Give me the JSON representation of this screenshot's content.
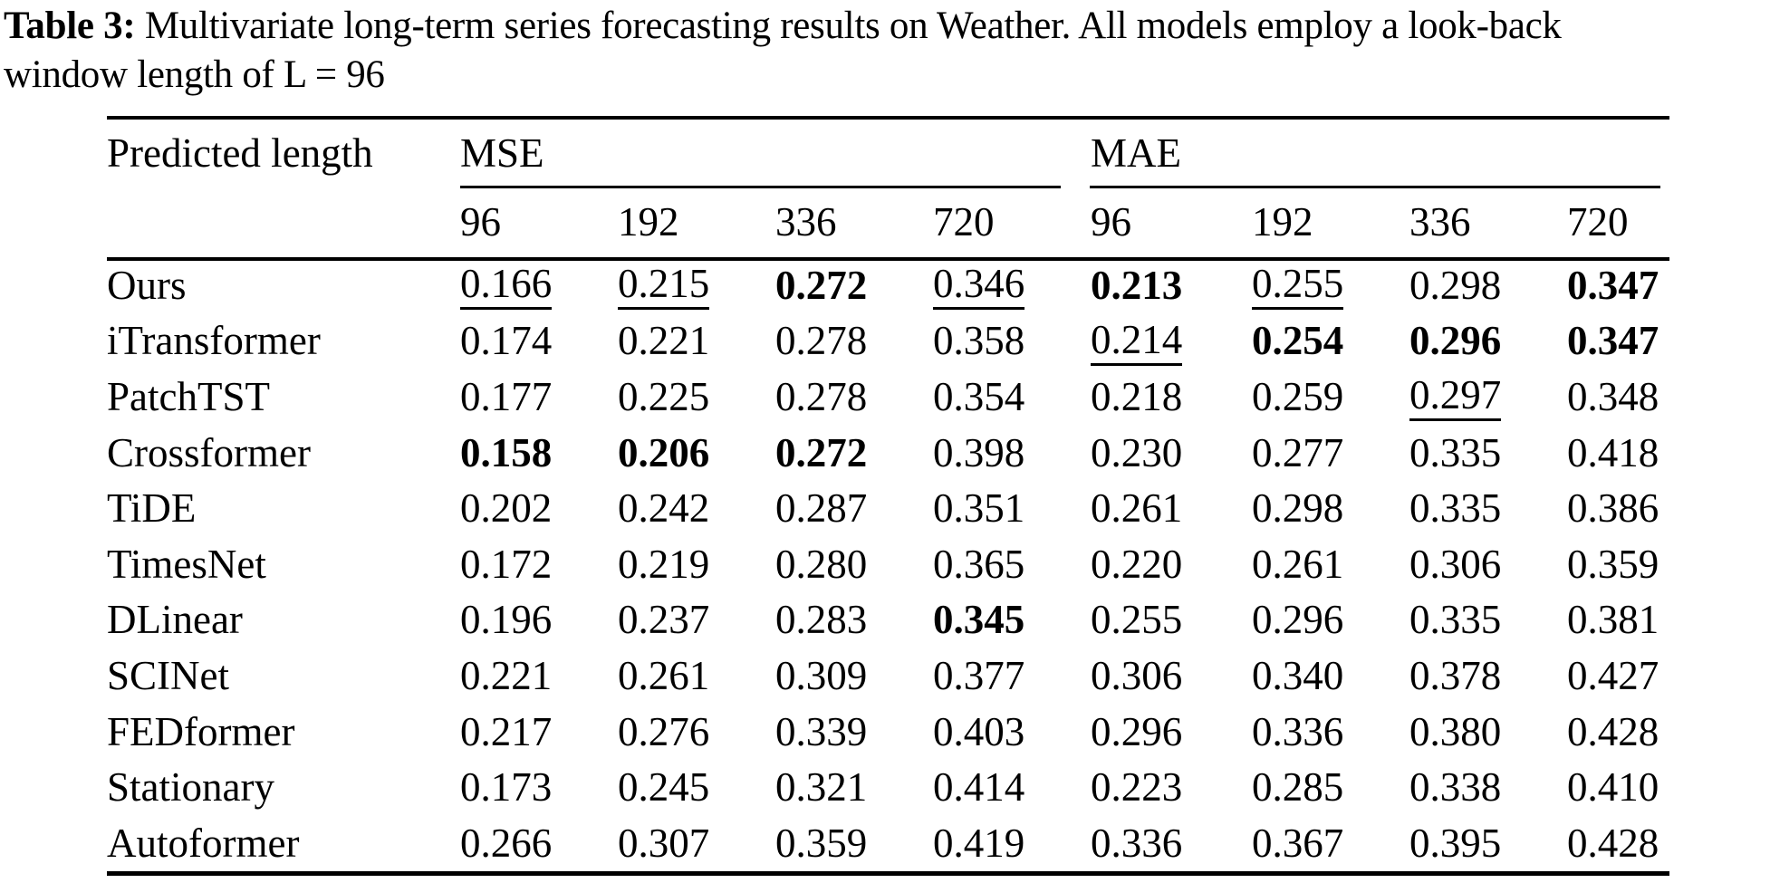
{
  "caption": {
    "label": "Table 3:",
    "line1": "Multivariate long-term series forecasting results on Weather. All models employ a look-back",
    "line2": "window length of L = 96"
  },
  "table": {
    "row_header": "Predicted length",
    "groups": [
      {
        "label": "MSE",
        "horizons": [
          "96",
          "192",
          "336",
          "720"
        ]
      },
      {
        "label": "MAE",
        "horizons": [
          "96",
          "192",
          "336",
          "720"
        ]
      }
    ],
    "rows": [
      {
        "model": "Ours",
        "cells": [
          {
            "v": "0.166",
            "f": "u"
          },
          {
            "v": "0.215",
            "f": "u"
          },
          {
            "v": "0.272",
            "f": "b"
          },
          {
            "v": "0.346",
            "f": "u"
          },
          {
            "v": "0.213",
            "f": "b"
          },
          {
            "v": "0.255",
            "f": "u"
          },
          {
            "v": "0.298",
            "f": "n"
          },
          {
            "v": "0.347",
            "f": "b"
          }
        ]
      },
      {
        "model": "iTransformer",
        "cells": [
          {
            "v": "0.174",
            "f": "n"
          },
          {
            "v": "0.221",
            "f": "n"
          },
          {
            "v": "0.278",
            "f": "n"
          },
          {
            "v": "0.358",
            "f": "n"
          },
          {
            "v": "0.214",
            "f": "u"
          },
          {
            "v": "0.254",
            "f": "b"
          },
          {
            "v": "0.296",
            "f": "b"
          },
          {
            "v": "0.347",
            "f": "b"
          }
        ]
      },
      {
        "model": "PatchTST",
        "cells": [
          {
            "v": "0.177",
            "f": "n"
          },
          {
            "v": "0.225",
            "f": "n"
          },
          {
            "v": "0.278",
            "f": "n"
          },
          {
            "v": "0.354",
            "f": "n"
          },
          {
            "v": "0.218",
            "f": "n"
          },
          {
            "v": "0.259",
            "f": "n"
          },
          {
            "v": "0.297",
            "f": "u"
          },
          {
            "v": "0.348",
            "f": "n"
          }
        ]
      },
      {
        "model": "Crossformer",
        "cells": [
          {
            "v": "0.158",
            "f": "b"
          },
          {
            "v": "0.206",
            "f": "b"
          },
          {
            "v": "0.272",
            "f": "b"
          },
          {
            "v": "0.398",
            "f": "n"
          },
          {
            "v": "0.230",
            "f": "n"
          },
          {
            "v": "0.277",
            "f": "n"
          },
          {
            "v": "0.335",
            "f": "n"
          },
          {
            "v": "0.418",
            "f": "n"
          }
        ]
      },
      {
        "model": "TiDE",
        "cells": [
          {
            "v": "0.202",
            "f": "n"
          },
          {
            "v": "0.242",
            "f": "n"
          },
          {
            "v": "0.287",
            "f": "n"
          },
          {
            "v": "0.351",
            "f": "n"
          },
          {
            "v": "0.261",
            "f": "n"
          },
          {
            "v": "0.298",
            "f": "n"
          },
          {
            "v": "0.335",
            "f": "n"
          },
          {
            "v": "0.386",
            "f": "n"
          }
        ]
      },
      {
        "model": "TimesNet",
        "cells": [
          {
            "v": "0.172",
            "f": "n"
          },
          {
            "v": "0.219",
            "f": "n"
          },
          {
            "v": "0.280",
            "f": "n"
          },
          {
            "v": "0.365",
            "f": "n"
          },
          {
            "v": "0.220",
            "f": "n"
          },
          {
            "v": "0.261",
            "f": "n"
          },
          {
            "v": "0.306",
            "f": "n"
          },
          {
            "v": "0.359",
            "f": "n"
          }
        ]
      },
      {
        "model": "DLinear",
        "cells": [
          {
            "v": "0.196",
            "f": "n"
          },
          {
            "v": "0.237",
            "f": "n"
          },
          {
            "v": "0.283",
            "f": "n"
          },
          {
            "v": "0.345",
            "f": "b"
          },
          {
            "v": "0.255",
            "f": "n"
          },
          {
            "v": "0.296",
            "f": "n"
          },
          {
            "v": "0.335",
            "f": "n"
          },
          {
            "v": "0.381",
            "f": "n"
          }
        ]
      },
      {
        "model": "SCINet",
        "cells": [
          {
            "v": "0.221",
            "f": "n"
          },
          {
            "v": "0.261",
            "f": "n"
          },
          {
            "v": "0.309",
            "f": "n"
          },
          {
            "v": "0.377",
            "f": "n"
          },
          {
            "v": "0.306",
            "f": "n"
          },
          {
            "v": "0.340",
            "f": "n"
          },
          {
            "v": "0.378",
            "f": "n"
          },
          {
            "v": "0.427",
            "f": "n"
          }
        ]
      },
      {
        "model": "FEDformer",
        "cells": [
          {
            "v": "0.217",
            "f": "n"
          },
          {
            "v": "0.276",
            "f": "n"
          },
          {
            "v": "0.339",
            "f": "n"
          },
          {
            "v": "0.403",
            "f": "n"
          },
          {
            "v": "0.296",
            "f": "n"
          },
          {
            "v": "0.336",
            "f": "n"
          },
          {
            "v": "0.380",
            "f": "n"
          },
          {
            "v": "0.428",
            "f": "n"
          }
        ]
      },
      {
        "model": "Stationary",
        "cells": [
          {
            "v": "0.173",
            "f": "n"
          },
          {
            "v": "0.245",
            "f": "n"
          },
          {
            "v": "0.321",
            "f": "n"
          },
          {
            "v": "0.414",
            "f": "n"
          },
          {
            "v": "0.223",
            "f": "n"
          },
          {
            "v": "0.285",
            "f": "n"
          },
          {
            "v": "0.338",
            "f": "n"
          },
          {
            "v": "0.410",
            "f": "n"
          }
        ]
      },
      {
        "model": "Autoformer",
        "cells": [
          {
            "v": "0.266",
            "f": "n"
          },
          {
            "v": "0.307",
            "f": "n"
          },
          {
            "v": "0.359",
            "f": "n"
          },
          {
            "v": "0.419",
            "f": "n"
          },
          {
            "v": "0.336",
            "f": "n"
          },
          {
            "v": "0.367",
            "f": "n"
          },
          {
            "v": "0.395",
            "f": "n"
          },
          {
            "v": "0.428",
            "f": "n"
          }
        ]
      }
    ]
  },
  "colors": {
    "text": "#000000",
    "background": "#ffffff",
    "rule": "#000000"
  }
}
